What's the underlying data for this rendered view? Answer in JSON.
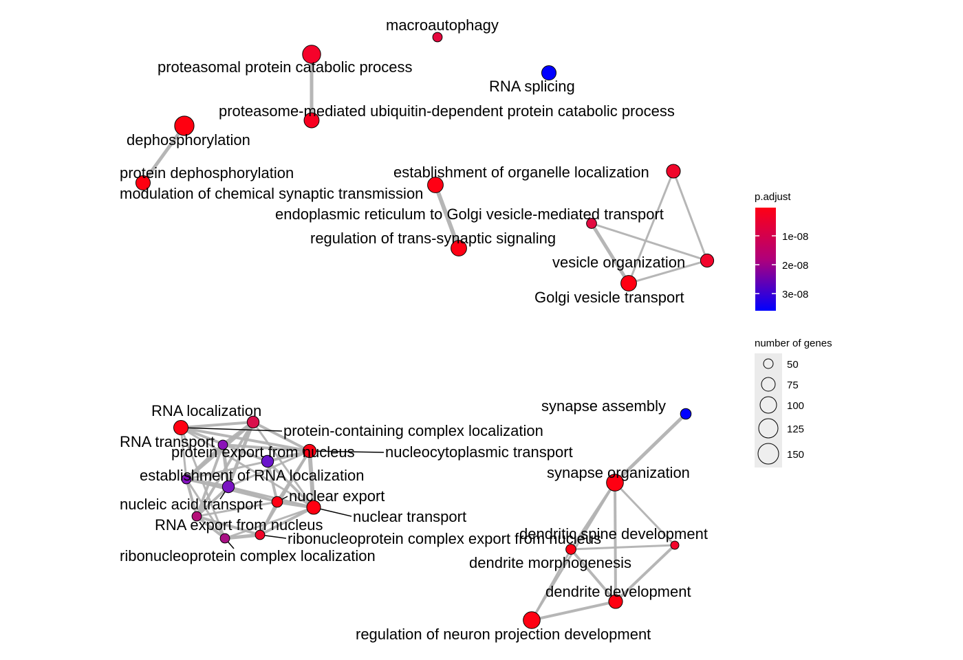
{
  "nodes": [
    {
      "id": "macroautophagy",
      "label": "macroautophagy",
      "genes": 50,
      "color": "#e5083e"
    },
    {
      "id": "proteasomal",
      "label": "proteasomal protein catabolic process",
      "genes": 120,
      "color": "#f5022a"
    },
    {
      "id": "rna_splicing",
      "label": "RNA splicing",
      "genes": 90,
      "color": "#0000ff"
    },
    {
      "id": "proteasome_ubiq",
      "label": "proteasome-mediated ubiquitin-dependent protein catabolic process",
      "genes": 95,
      "color": "#f80020"
    },
    {
      "id": "dephosphorylation",
      "label": "dephosphorylation",
      "genes": 130,
      "color": "#ff0010"
    },
    {
      "id": "protein_dephos",
      "label": "protein dephosphorylation",
      "genes": 90,
      "color": "#ff0010"
    },
    {
      "id": "mod_synaptic",
      "label": "modulation of chemical synaptic transmission",
      "genes": 100,
      "color": "#ff0014"
    },
    {
      "id": "reg_trans_synaptic",
      "label": "regulation of trans-synaptic signaling",
      "genes": 100,
      "color": "#ff0014"
    },
    {
      "id": "establish_organelle",
      "label": "establishment of organelle localization",
      "genes": 85,
      "color": "#f0062a"
    },
    {
      "id": "er_golgi",
      "label": "endoplasmic reticulum to Golgi vesicle-mediated transport",
      "genes": 55,
      "color": "#e20a40"
    },
    {
      "id": "vesicle_org",
      "label": "vesicle organization",
      "genes": 80,
      "color": "#f2052c"
    },
    {
      "id": "golgi_vesicle",
      "label": "Golgi vesicle transport",
      "genes": 100,
      "color": "#ff0012"
    },
    {
      "id": "rna_localization",
      "label": "RNA localization",
      "genes": 70,
      "color": "#d9104c"
    },
    {
      "id": "protein_complex_loc",
      "label": "protein-containing complex localization",
      "genes": 90,
      "color": "#ff0012"
    },
    {
      "id": "rna_transport",
      "label": "RNA transport",
      "genes": 50,
      "color": "#8a12b8"
    },
    {
      "id": "protein_export",
      "label": "protein export from nucleus",
      "genes": 70,
      "color": "#6a14cc"
    },
    {
      "id": "nucleocyto",
      "label": "nucleocytoplasmic transport",
      "genes": 80,
      "color": "#ff0014"
    },
    {
      "id": "establish_rna",
      "label": "establishment of RNA localization",
      "genes": 50,
      "color": "#8212bc"
    },
    {
      "id": "nucleic_acid",
      "label": "nucleic acid transport",
      "genes": 70,
      "color": "#7a14c2"
    },
    {
      "id": "nuclear_export",
      "label": "nuclear export",
      "genes": 60,
      "color": "#ff0014"
    },
    {
      "id": "nuclear_transport",
      "label": "nuclear transport",
      "genes": 85,
      "color": "#ff0012"
    },
    {
      "id": "rna_export",
      "label": "RNA export from nucleus",
      "genes": 50,
      "color": "#b40e78"
    },
    {
      "id": "rnp_export",
      "label": "ribonucleoprotein complex export from nucleus",
      "genes": 50,
      "color": "#f00428"
    },
    {
      "id": "rnp_loc",
      "label": "ribonucleoprotein complex localization",
      "genes": 50,
      "color": "#a81084"
    },
    {
      "id": "synapse_assembly",
      "label": "synapse assembly",
      "genes": 60,
      "color": "#0000ff"
    },
    {
      "id": "synapse_org",
      "label": "synapse organization",
      "genes": 110,
      "color": "#ff0012"
    },
    {
      "id": "dendritic_spine",
      "label": "dendritic spine development",
      "genes": 40,
      "color": "#f2052c"
    },
    {
      "id": "dendrite_morph",
      "label": "dendrite morphogenesis",
      "genes": 55,
      "color": "#ff0014"
    },
    {
      "id": "dendrite_dev",
      "label": "dendrite development",
      "genes": 85,
      "color": "#ff0012"
    },
    {
      "id": "reg_neuron_proj",
      "label": "regulation of neuron projection development",
      "genes": 110,
      "color": "#ff0012"
    }
  ],
  "edges": [
    {
      "from": "proteasomal",
      "to": "proteasome_ubiq",
      "weight": 5
    },
    {
      "from": "dephosphorylation",
      "to": "protein_dephos",
      "weight": 5
    },
    {
      "from": "mod_synaptic",
      "to": "reg_trans_synaptic",
      "weight": 6
    },
    {
      "from": "establish_organelle",
      "to": "vesicle_org",
      "weight": 3
    },
    {
      "from": "establish_organelle",
      "to": "golgi_vesicle",
      "weight": 3
    },
    {
      "from": "er_golgi",
      "to": "golgi_vesicle",
      "weight": 5
    },
    {
      "from": "er_golgi",
      "to": "vesicle_org",
      "weight": 3
    },
    {
      "from": "vesicle_org",
      "to": "golgi_vesicle",
      "weight": 3
    },
    {
      "from": "rna_localization",
      "to": "protein_complex_loc",
      "weight": 4
    },
    {
      "from": "rna_localization",
      "to": "nucleocyto",
      "weight": 4
    },
    {
      "from": "rna_localization",
      "to": "rna_transport",
      "weight": 5
    },
    {
      "from": "rna_localization",
      "to": "establish_rna",
      "weight": 5
    },
    {
      "from": "rna_localization",
      "to": "nucleic_acid",
      "weight": 5
    },
    {
      "from": "rna_localization",
      "to": "rna_export",
      "weight": 4
    },
    {
      "from": "rna_localization",
      "to": "nuclear_transport",
      "weight": 3
    },
    {
      "from": "protein_complex_loc",
      "to": "protein_export",
      "weight": 4
    },
    {
      "from": "protein_complex_loc",
      "to": "nucleocyto",
      "weight": 4
    },
    {
      "from": "protein_complex_loc",
      "to": "rnp_loc",
      "weight": 3
    },
    {
      "from": "protein_complex_loc",
      "to": "nuclear_transport",
      "weight": 3
    },
    {
      "from": "protein_complex_loc",
      "to": "establish_rna",
      "weight": 3
    },
    {
      "from": "rna_transport",
      "to": "nucleic_acid",
      "weight": 5
    },
    {
      "from": "rna_transport",
      "to": "establish_rna",
      "weight": 5
    },
    {
      "from": "rna_transport",
      "to": "nucleocyto",
      "weight": 4
    },
    {
      "from": "rna_transport",
      "to": "rna_export",
      "weight": 4
    },
    {
      "from": "protein_export",
      "to": "nuclear_export",
      "weight": 4
    },
    {
      "from": "protein_export",
      "to": "nucleocyto",
      "weight": 4
    },
    {
      "from": "protein_export",
      "to": "nuclear_transport",
      "weight": 4
    },
    {
      "from": "protein_export",
      "to": "establish_rna",
      "weight": 3
    },
    {
      "from": "nucleocyto",
      "to": "nuclear_transport",
      "weight": 6
    },
    {
      "from": "nucleocyto",
      "to": "nuclear_export",
      "weight": 4
    },
    {
      "from": "nucleocyto",
      "to": "nucleic_acid",
      "weight": 3
    },
    {
      "from": "nucleocyto",
      "to": "rnp_export",
      "weight": 3
    },
    {
      "from": "establish_rna",
      "to": "nucleic_acid",
      "weight": 5
    },
    {
      "from": "establish_rna",
      "to": "nuclear_export",
      "weight": 3
    },
    {
      "from": "establish_rna",
      "to": "rna_export",
      "weight": 4
    },
    {
      "from": "nucleic_acid",
      "to": "nuclear_export",
      "weight": 4
    },
    {
      "from": "nucleic_acid",
      "to": "rna_export",
      "weight": 4
    },
    {
      "from": "nucleic_acid",
      "to": "nuclear_transport",
      "weight": 3
    },
    {
      "from": "nuclear_export",
      "to": "nuclear_transport",
      "weight": 5
    },
    {
      "from": "nuclear_export",
      "to": "rnp_export",
      "weight": 4
    },
    {
      "from": "nuclear_export",
      "to": "rna_export",
      "weight": 3
    },
    {
      "from": "nuclear_transport",
      "to": "rnp_export",
      "weight": 4
    },
    {
      "from": "nuclear_transport",
      "to": "rnp_loc",
      "weight": 3
    },
    {
      "from": "rna_export",
      "to": "rnp_loc",
      "weight": 4
    },
    {
      "from": "rna_export",
      "to": "rnp_export",
      "weight": 4
    },
    {
      "from": "rnp_export",
      "to": "rnp_loc",
      "weight": 5
    },
    {
      "from": "rnp_loc",
      "to": "establish_rna",
      "weight": 3
    },
    {
      "from": "synapse_assembly",
      "to": "synapse_org",
      "weight": 5
    },
    {
      "from": "synapse_org",
      "to": "dendrite_morph",
      "weight": 4
    },
    {
      "from": "synapse_org",
      "to": "dendrite_dev",
      "weight": 4
    },
    {
      "from": "synapse_org",
      "to": "dendritic_spine",
      "weight": 3
    },
    {
      "from": "synapse_org",
      "to": "reg_neuron_proj",
      "weight": 3
    },
    {
      "from": "dendrite_morph",
      "to": "dendrite_dev",
      "weight": 4
    },
    {
      "from": "dendrite_morph",
      "to": "dendritic_spine",
      "weight": 3
    },
    {
      "from": "dendrite_morph",
      "to": "reg_neuron_proj",
      "weight": 3
    },
    {
      "from": "dendrite_dev",
      "to": "dendritic_spine",
      "weight": 4
    },
    {
      "from": "dendrite_dev",
      "to": "reg_neuron_proj",
      "weight": 4
    }
  ],
  "legend": {
    "color_title": "p.adjust",
    "color_ticks": [
      "1e-08",
      "2e-08",
      "3e-08"
    ],
    "color_gradient": [
      "#ff0000",
      "#0000ff"
    ],
    "size_title": "number of genes",
    "size_ticks": [
      50,
      75,
      100,
      125,
      150
    ]
  },
  "style": {
    "edge_color": "#b2b2b2",
    "node_stroke": "#000000"
  }
}
